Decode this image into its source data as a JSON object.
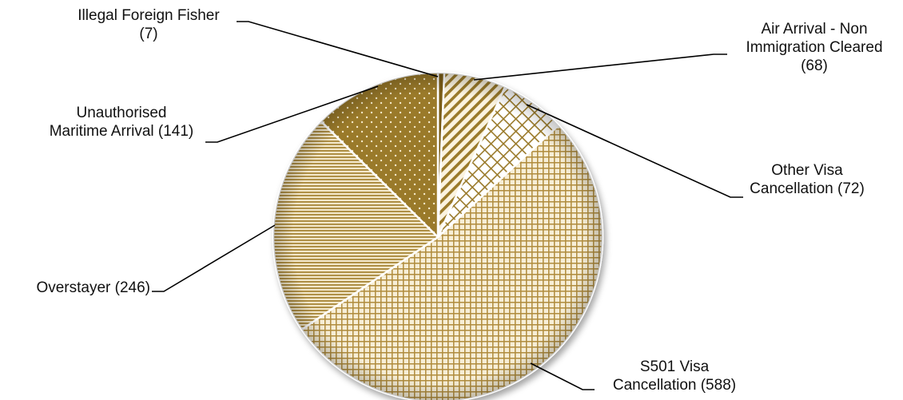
{
  "chart_data": {
    "type": "pie",
    "slices": [
      {
        "label_lines": [
          "Illegal Foreign Fisher",
          "(7)"
        ],
        "value": 7,
        "pattern": "solid"
      },
      {
        "label_lines": [
          "Air Arrival - Non",
          "Immigration Cleared",
          "(68)"
        ],
        "value": 68,
        "pattern": "diagonal"
      },
      {
        "label_lines": [
          "Other Visa",
          "Cancellation (72)"
        ],
        "value": 72,
        "pattern": "crosshatch"
      },
      {
        "label_lines": [
          "S501 Visa",
          "Cancellation (588)"
        ],
        "value": 588,
        "pattern": "grid"
      },
      {
        "label_lines": [
          "Overstayer (246)"
        ],
        "value": 246,
        "pattern": "horizontal"
      },
      {
        "label_lines": [
          "Unauthorised",
          "Maritime Arrival (141)"
        ],
        "value": 141,
        "pattern": "dots"
      }
    ],
    "colors": {
      "primary": "#9a7a2a",
      "light": "#f6ecd2",
      "dark": "#7a5c18",
      "leader": "#000000"
    },
    "legend": "none",
    "grid": false
  }
}
